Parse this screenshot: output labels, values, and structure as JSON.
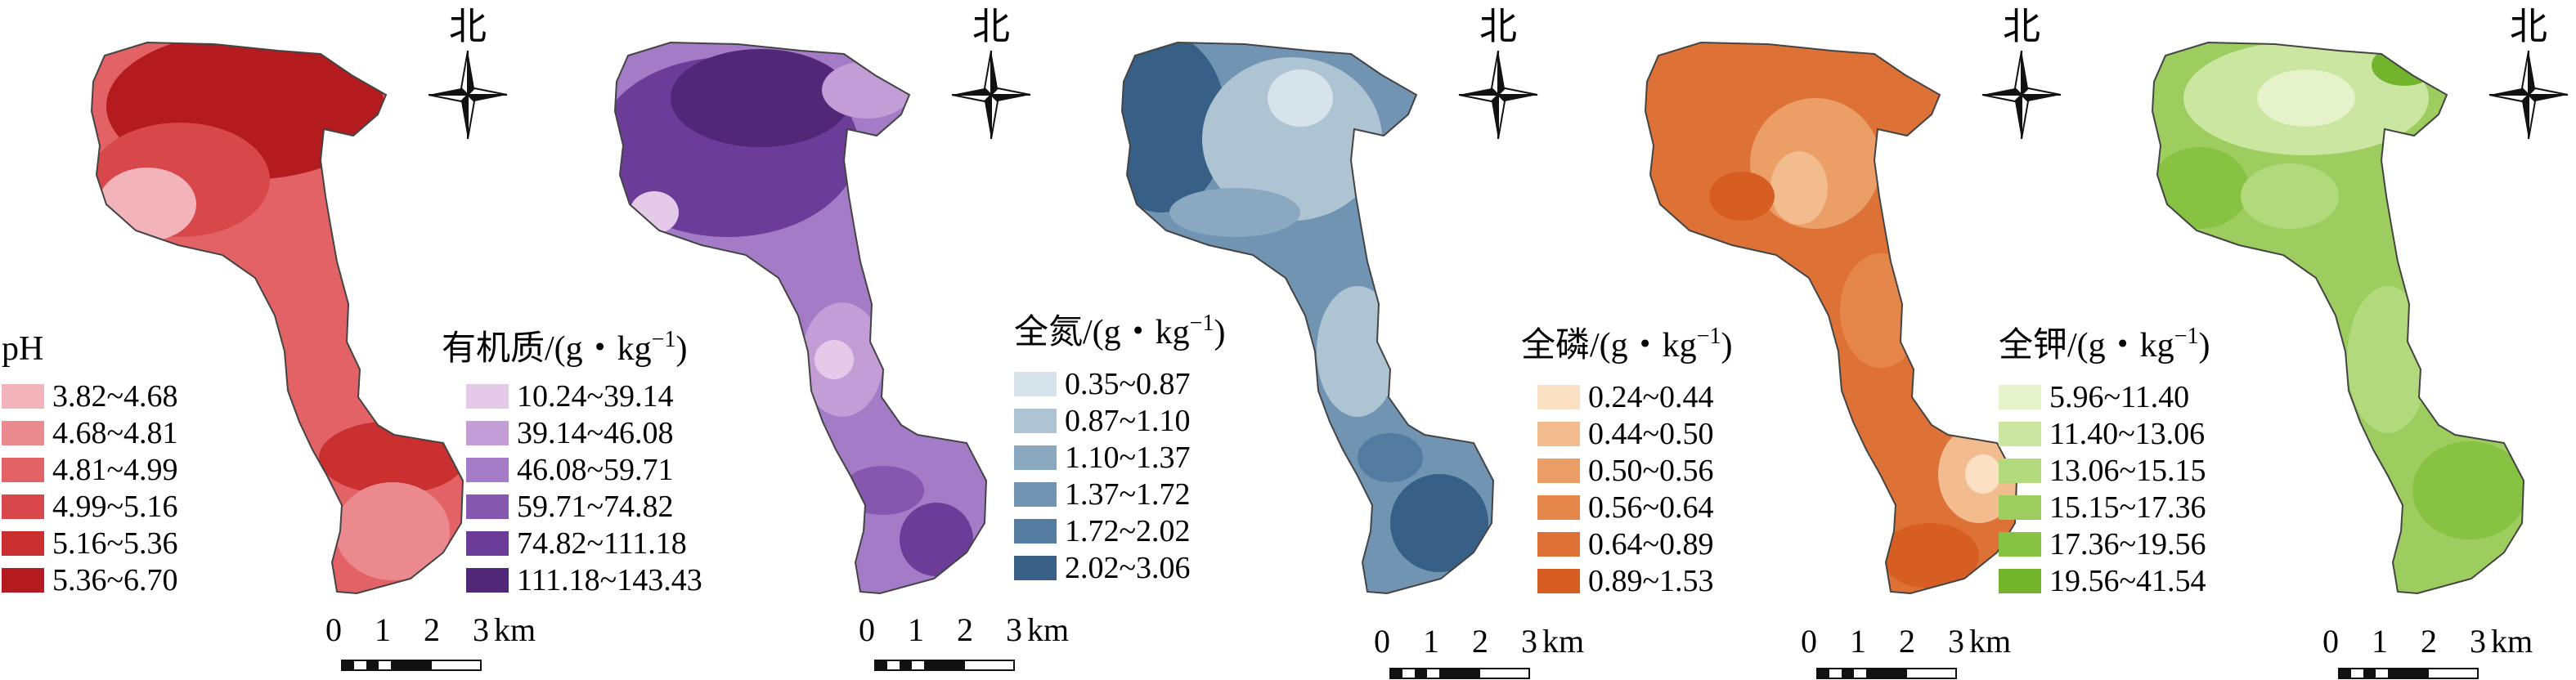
{
  "maps": [
    {
      "id": "ph",
      "north_label": "北",
      "legend_title": "pH",
      "legend_title_sup": "",
      "legend_title_end": "",
      "classes": [
        {
          "label": "3.82~4.68",
          "color": "#f3b3bb"
        },
        {
          "label": "4.68~4.81",
          "color": "#ea8a8e"
        },
        {
          "label": "4.81~4.99",
          "color": "#e26265"
        },
        {
          "label": "4.99~5.16",
          "color": "#d8484a"
        },
        {
          "label": "5.16~5.36",
          "color": "#c9302f"
        },
        {
          "label": "5.36~6.70",
          "color": "#b31b1e"
        }
      ],
      "scale_labels": [
        "0",
        "1",
        "2",
        "3",
        "km"
      ]
    },
    {
      "id": "organic-matter",
      "north_label": "北",
      "legend_title": "有机质/(g・kg",
      "legend_title_sup": "−1",
      "legend_title_end": ")",
      "classes": [
        {
          "label": "10.24~39.14",
          "color": "#e5c9e9"
        },
        {
          "label": "39.14~46.08",
          "color": "#c39dd6"
        },
        {
          "label": "46.08~59.71",
          "color": "#a37bc6"
        },
        {
          "label": "59.71~74.82",
          "color": "#8557ae"
        },
        {
          "label": "74.82~111.18",
          "color": "#6b3c98"
        },
        {
          "label": "111.18~143.43",
          "color": "#512778"
        }
      ],
      "scale_labels": [
        "0",
        "1",
        "2",
        "3",
        "km"
      ]
    },
    {
      "id": "total-nitrogen",
      "north_label": "北",
      "legend_title": "全氮/(g・kg",
      "legend_title_sup": "−1",
      "legend_title_end": ")",
      "classes": [
        {
          "label": "0.35~0.87",
          "color": "#d7e3ea"
        },
        {
          "label": "0.87~1.10",
          "color": "#aec4d3"
        },
        {
          "label": "1.10~1.37",
          "color": "#8aa9c0"
        },
        {
          "label": "1.37~1.72",
          "color": "#7094b2"
        },
        {
          "label": "1.72~2.02",
          "color": "#547ba0"
        },
        {
          "label": "2.02~3.06",
          "color": "#385f86"
        }
      ],
      "scale_labels": [
        "0",
        "1",
        "2",
        "3",
        "km"
      ]
    },
    {
      "id": "total-phosphorus",
      "north_label": "北",
      "legend_title": "全磷/(g・kg",
      "legend_title_sup": "−1",
      "legend_title_end": ")",
      "classes": [
        {
          "label": "0.24~0.44",
          "color": "#fbe0c4"
        },
        {
          "label": "0.44~0.50",
          "color": "#f2bc8e"
        },
        {
          "label": "0.50~0.56",
          "color": "#eb9e66"
        },
        {
          "label": "0.56~0.64",
          "color": "#e5864a"
        },
        {
          "label": "0.64~0.89",
          "color": "#de7236"
        },
        {
          "label": "0.89~1.53",
          "color": "#d75e23"
        }
      ],
      "scale_labels": [
        "0",
        "1",
        "2",
        "3",
        "km"
      ]
    },
    {
      "id": "total-potassium",
      "north_label": "北",
      "legend_title": "全钾/(g・kg",
      "legend_title_sup": "−1",
      "legend_title_end": ")",
      "classes": [
        {
          "label": "5.96~11.40",
          "color": "#e6f2c9"
        },
        {
          "label": "11.40~13.06",
          "color": "#cbe6a0"
        },
        {
          "label": "13.06~15.15",
          "color": "#b2d97b"
        },
        {
          "label": "15.15~17.36",
          "color": "#9ccd5e"
        },
        {
          "label": "17.36~19.56",
          "color": "#88c243"
        },
        {
          "label": "19.56~41.54",
          "color": "#72b52c"
        }
      ],
      "scale_labels": [
        "0",
        "1",
        "2",
        "3",
        "km"
      ]
    }
  ]
}
